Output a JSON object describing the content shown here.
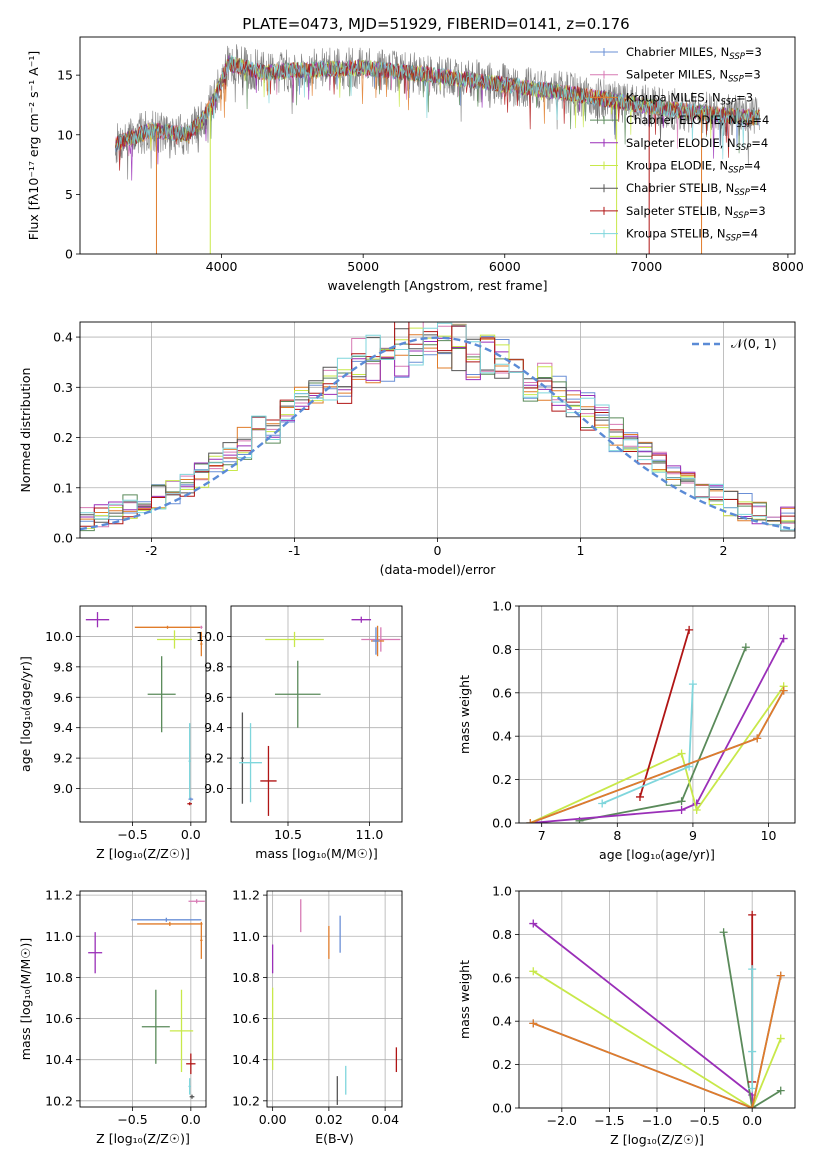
{
  "title": "PLATE=0473, MJD=51929, FIBERID=0141, z=0.176",
  "colors": {
    "chabrier_miles": "#6a8fd6",
    "salpeter_miles": "#d77ab4",
    "kroupa_miles": "#e07c2a",
    "chabrier_elodie": "#5a8a5a",
    "salpeter_elodie": "#9a2fb8",
    "kroupa_elodie": "#c8e84a",
    "chabrier_stelib": "#555555",
    "salpeter_stelib": "#b01515",
    "kroupa_stelib": "#7fd6dc",
    "data": "#808080",
    "normal": "#5b8bd6"
  },
  "chart_data": [
    {
      "id": "spectrum",
      "type": "line",
      "xlabel": "wavelength [Angstrom, rest frame]",
      "ylabel": "Flux [fλ10⁻¹⁷ erg cm⁻² s⁻¹ A⁻¹]",
      "xlim": [
        3000,
        8050
      ],
      "ylim": [
        0,
        18.2
      ],
      "xticks": [
        4000,
        5000,
        6000,
        7000,
        8000
      ],
      "yticks": [
        0,
        5,
        10,
        15
      ],
      "grid": false,
      "legend_position": "right",
      "legend": [
        {
          "label": "Chabrier MILES, N_SSP=3",
          "color": "chabrier_miles"
        },
        {
          "label": "Salpeter MILES, N_SSP=3",
          "color": "salpeter_miles"
        },
        {
          "label": "Kroupa MILES, N_SSP=3",
          "color": "kroupa_miles"
        },
        {
          "label": "Chabrier ELODIE, N_SSP=4",
          "color": "chabrier_elodie"
        },
        {
          "label": "Salpeter ELODIE, N_SSP=4",
          "color": "salpeter_elodie"
        },
        {
          "label": "Kroupa ELODIE, N_SSP=4",
          "color": "kroupa_elodie"
        },
        {
          "label": "Chabrier STELIB, N_SSP=4",
          "color": "chabrier_stelib"
        },
        {
          "label": "Salpeter STELIB, N_SSP=3",
          "color": "salpeter_stelib"
        },
        {
          "label": "Kroupa STELIB, N_SSP=4",
          "color": "kroupa_stelib"
        }
      ],
      "spectrum_range": [
        3250,
        7800
      ],
      "continuum": [
        [
          3250,
          9.2
        ],
        [
          3500,
          10.4
        ],
        [
          3750,
          10.0
        ],
        [
          3850,
          11.0
        ],
        [
          3950,
          13.0
        ],
        [
          4050,
          16.0
        ],
        [
          4300,
          15.2
        ],
        [
          4500,
          15.4
        ],
        [
          5000,
          15.6
        ],
        [
          5500,
          15.0
        ],
        [
          6000,
          14.2
        ],
        [
          6500,
          13.4
        ],
        [
          7000,
          12.4
        ],
        [
          7500,
          11.7
        ],
        [
          7800,
          11.4
        ]
      ],
      "drops": [
        {
          "x": 3540,
          "color": "kroupa_miles"
        },
        {
          "x": 3920,
          "color": "kroupa_elodie"
        },
        {
          "x": 6790,
          "color": "kroupa_elodie"
        },
        {
          "x": 7020,
          "color": "salpeter_stelib"
        },
        {
          "x": 7390,
          "color": "kroupa_miles"
        }
      ]
    },
    {
      "id": "residual_hist",
      "type": "histogram",
      "xlabel": "(data-model)/error",
      "ylabel": "Normed distribution",
      "xlim": [
        -2.5,
        2.5
      ],
      "ylim": [
        0,
        0.43
      ],
      "xticks": [
        -2,
        -1,
        0,
        1,
        2
      ],
      "yticks": [
        0.0,
        0.1,
        0.2,
        0.3,
        0.4
      ],
      "grid": true,
      "legend_position": "top-right",
      "legend": [
        {
          "label": "𝒩(0, 1)",
          "color": "normal",
          "dashed": true
        }
      ],
      "bin_width": 0.1
    },
    {
      "id": "age_vs_Z",
      "type": "scatter",
      "xlabel": "Z [log₁₀(Z/Z☉)]",
      "ylabel": "age  [log₁₀(age/yr)]",
      "xlim": [
        -0.95,
        0.13
      ],
      "ylim": [
        8.78,
        10.2
      ],
      "xticks": [
        -0.5,
        0.0
      ],
      "xticklabels": [
        "−0.5",
        "0.0"
      ],
      "yticks": [
        9.0,
        9.2,
        9.4,
        9.6,
        9.8,
        10.0
      ],
      "points": [
        {
          "color": "salpeter_elodie",
          "x": -0.8,
          "xerr": 0.1,
          "y": 10.11,
          "yerr": 0.05
        },
        {
          "color": "kroupa_miles",
          "x": -0.2,
          "xerr": 0.28,
          "y": 10.06,
          "yerr": 0.01
        },
        {
          "color": "salpeter_miles",
          "x": 0.09,
          "xerr": 0.01,
          "y": 10.06,
          "yerr": 0.01
        },
        {
          "color": "kroupa_elodie",
          "x": -0.14,
          "xerr": 0.15,
          "y": 9.98,
          "yerr": 0.06
        },
        {
          "color": "kroupa_miles",
          "x": 0.09,
          "xerr": 0.01,
          "y": 9.95,
          "yerr": 0.08
        },
        {
          "color": "chabrier_elodie",
          "x": -0.25,
          "xerr": 0.12,
          "y": 9.62,
          "yerr": 0.25
        },
        {
          "color": "kroupa_stelib",
          "x": -0.01,
          "xerr": 0.01,
          "y": 9.18,
          "yerr": 0.25
        },
        {
          "color": "chabrier_miles",
          "x": 0.0,
          "xerr": 0.02,
          "y": 8.93,
          "yerr": 0.01
        },
        {
          "color": "salpeter_stelib",
          "x": -0.01,
          "xerr": 0.02,
          "y": 8.9,
          "yerr": 0.01
        }
      ]
    },
    {
      "id": "age_vs_mass",
      "type": "scatter",
      "xlabel": "mass [log₁₀(M/M☉)]",
      "ylabel": "",
      "xlim": [
        10.15,
        11.2
      ],
      "ylim": [
        8.78,
        10.2
      ],
      "xticks": [
        10.5,
        11.0
      ],
      "xticklabels": [
        "10.5",
        "11.0"
      ],
      "yticks": [
        9.0,
        9.2,
        9.4,
        9.6,
        9.8,
        10.0
      ],
      "points": [
        {
          "color": "salpeter_elodie",
          "x": 10.95,
          "xerr": 0.06,
          "y": 10.11,
          "yerr": 0.02
        },
        {
          "color": "salpeter_miles",
          "x": 11.07,
          "xerr": 0.12,
          "y": 9.98,
          "yerr": 0.08
        },
        {
          "color": "kroupa_miles",
          "x": 11.05,
          "xerr": 0.04,
          "y": 9.97,
          "yerr": 0.1
        },
        {
          "color": "chabrier_miles",
          "x": 11.04,
          "xerr": 0.02,
          "y": 9.97,
          "yerr": 0.09
        },
        {
          "color": "kroupa_elodie",
          "x": 10.54,
          "xerr": 0.18,
          "y": 9.98,
          "yerr": 0.05
        },
        {
          "color": "chabrier_elodie",
          "x": 10.56,
          "xerr": 0.14,
          "y": 9.62,
          "yerr": 0.22
        },
        {
          "color": "chabrier_stelib",
          "x": 10.22,
          "xerr": 0.01,
          "y": 9.2,
          "yerr": 0.3
        },
        {
          "color": "kroupa_stelib",
          "x": 10.27,
          "xerr": 0.07,
          "y": 9.17,
          "yerr": 0.26
        },
        {
          "color": "salpeter_stelib",
          "x": 10.38,
          "xerr": 0.05,
          "y": 9.05,
          "yerr": 0.23
        }
      ]
    },
    {
      "id": "weight_vs_age",
      "type": "line",
      "xlabel": "age  [log₁₀(age/yr)]",
      "ylabel": "mass weight",
      "xlim": [
        6.7,
        10.35
      ],
      "ylim": [
        0,
        1.0
      ],
      "xticks": [
        7,
        8,
        9,
        10
      ],
      "yticks": [
        0.0,
        0.2,
        0.4,
        0.6,
        0.8,
        1.0
      ],
      "grid": true,
      "series": [
        {
          "color": "chabrier_elodie",
          "x": [
            7.5,
            8.85,
            9.7
          ],
          "y": [
            0.01,
            0.1,
            0.81
          ]
        },
        {
          "color": "salpeter_elodie",
          "x": [
            6.85,
            8.85,
            9.05,
            10.2
          ],
          "y": [
            0.0,
            0.06,
            0.09,
            0.85
          ]
        },
        {
          "color": "kroupa_elodie",
          "x": [
            6.85,
            8.85,
            9.05,
            10.2
          ],
          "y": [
            0.0,
            0.32,
            0.06,
            0.63
          ]
        },
        {
          "color": "salpeter_stelib",
          "x": [
            8.3,
            8.95
          ],
          "y": [
            0.12,
            0.89
          ]
        },
        {
          "color": "kroupa_stelib",
          "x": [
            7.8,
            8.95,
            9.0
          ],
          "y": [
            0.09,
            0.26,
            0.64
          ]
        },
        {
          "color": "chabrier_miles",
          "x": [
            6.85,
            9.85,
            10.2
          ],
          "y": [
            0.0,
            0.39,
            0.61
          ]
        },
        {
          "color": "kroupa_miles",
          "x": [
            6.85,
            9.85,
            10.2
          ],
          "y": [
            0.0,
            0.39,
            0.61
          ]
        }
      ]
    },
    {
      "id": "mass_vs_Z",
      "type": "scatter",
      "xlabel": "Z [log₁₀(Z/Z☉)]",
      "ylabel": "mass [log₁₀(M/M☉)]",
      "xlim": [
        -0.95,
        0.13
      ],
      "ylim": [
        10.17,
        11.22
      ],
      "xticks": [
        -0.5,
        0.0
      ],
      "xticklabels": [
        "−0.5",
        "0.0"
      ],
      "yticks": [
        10.2,
        10.4,
        10.6,
        10.8,
        11.0,
        11.2
      ],
      "points": [
        {
          "color": "salpeter_miles",
          "x": 0.05,
          "xerr": 0.07,
          "y": 11.17,
          "yerr": 0.01
        },
        {
          "color": "chabrier_miles",
          "x": -0.21,
          "xerr": 0.3,
          "y": 11.08,
          "yerr": 0.01
        },
        {
          "color": "kroupa_miles",
          "x": -0.18,
          "xerr": 0.28,
          "y": 11.06,
          "yerr": 0.01
        },
        {
          "color": "kroupa_miles",
          "x": 0.09,
          "xerr": 0.01,
          "y": 10.98,
          "yerr": 0.09
        },
        {
          "color": "salpeter_elodie",
          "x": -0.82,
          "xerr": 0.06,
          "y": 10.92,
          "yerr": 0.1
        },
        {
          "color": "chabrier_elodie",
          "x": -0.3,
          "xerr": 0.12,
          "y": 10.56,
          "yerr": 0.18
        },
        {
          "color": "kroupa_elodie",
          "x": -0.08,
          "xerr": 0.1,
          "y": 10.54,
          "yerr": 0.2
        },
        {
          "color": "salpeter_stelib",
          "x": 0.0,
          "xerr": 0.04,
          "y": 10.38,
          "yerr": 0.05
        },
        {
          "color": "kroupa_stelib",
          "x": -0.01,
          "xerr": 0.01,
          "y": 10.27,
          "yerr": 0.04
        },
        {
          "color": "chabrier_stelib",
          "x": 0.01,
          "xerr": 0.02,
          "y": 10.22,
          "yerr": 0.01
        }
      ]
    },
    {
      "id": "mass_vs_EBV",
      "type": "scatter",
      "xlabel": "E(B-V)",
      "ylabel": "",
      "xlim": [
        -0.002,
        0.046
      ],
      "ylim": [
        10.17,
        11.22
      ],
      "xticks": [
        0.0,
        0.02,
        0.04
      ],
      "xticklabels": [
        "0.00",
        "0.02",
        "0.04"
      ],
      "yticks": [
        10.2,
        10.4,
        10.6,
        10.8,
        11.0,
        11.2
      ],
      "points": [
        {
          "color": "salpeter_miles",
          "x": 0.01,
          "xerr": 0,
          "y": 11.1,
          "yerr": 0.08
        },
        {
          "color": "chabrier_miles",
          "x": 0.024,
          "xerr": 0,
          "y": 11.01,
          "yerr": 0.09
        },
        {
          "color": "kroupa_miles",
          "x": 0.02,
          "xerr": 0,
          "y": 10.97,
          "yerr": 0.08
        },
        {
          "color": "salpeter_elodie",
          "x": 0.0,
          "xerr": 0,
          "y": 10.89,
          "yerr": 0.07
        },
        {
          "color": "kroupa_elodie",
          "x": 0.0,
          "xerr": 0,
          "y": 10.55,
          "yerr": 0.2
        },
        {
          "color": "salpeter_stelib",
          "x": 0.044,
          "xerr": 0,
          "y": 10.4,
          "yerr": 0.06
        },
        {
          "color": "kroupa_stelib",
          "x": 0.026,
          "xerr": 0,
          "y": 10.3,
          "yerr": 0.07
        },
        {
          "color": "chabrier_stelib",
          "x": 0.023,
          "xerr": 0,
          "y": 10.25,
          "yerr": 0.07
        }
      ]
    },
    {
      "id": "weight_vs_Z",
      "type": "line",
      "xlabel": "Z [log₁₀(Z/Z☉)]",
      "ylabel": "mass weight",
      "xlim": [
        -2.45,
        0.45
      ],
      "ylim": [
        0,
        1.0
      ],
      "xticks": [
        -2.0,
        -1.5,
        -1.0,
        -0.5,
        0.0
      ],
      "xticklabels": [
        "−2.0",
        "−1.5",
        "−1.0",
        "−0.5",
        "0.0"
      ],
      "yticks": [
        0.0,
        0.2,
        0.4,
        0.6,
        0.8,
        1.0
      ],
      "grid": true,
      "series": [
        {
          "color": "salpeter_elodie",
          "x": [
            -2.3,
            0.0,
            0.0
          ],
          "y": [
            0.85,
            0.06,
            0.0
          ]
        },
        {
          "color": "kroupa_elodie",
          "x": [
            -2.3,
            0.0,
            0.3
          ],
          "y": [
            0.63,
            0.0,
            0.32
          ]
        },
        {
          "color": "chabrier_elodie",
          "x": [
            -0.3,
            0.0,
            0.3
          ],
          "y": [
            0.81,
            0.0,
            0.08
          ]
        },
        {
          "color": "salpeter_stelib",
          "x": [
            0.0,
            0.0
          ],
          "y": [
            0.89,
            0.12
          ]
        },
        {
          "color": "kroupa_stelib",
          "x": [
            0.0,
            0.0,
            0.0
          ],
          "y": [
            0.64,
            0.26,
            0.09
          ]
        },
        {
          "color": "chabrier_miles",
          "x": [
            -2.3,
            0.0,
            0.3
          ],
          "y": [
            0.39,
            0.0,
            0.61
          ]
        },
        {
          "color": "kroupa_miles",
          "x": [
            -2.3,
            0.0,
            0.3
          ],
          "y": [
            0.39,
            0.0,
            0.61
          ]
        }
      ]
    }
  ]
}
